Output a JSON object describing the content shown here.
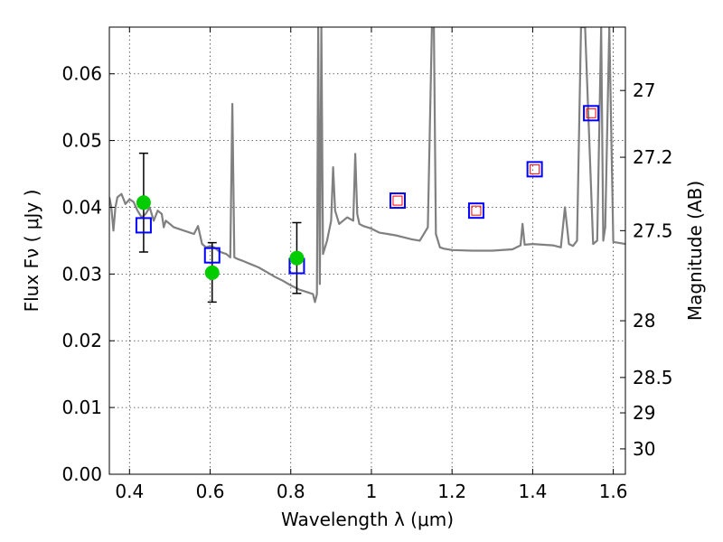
{
  "chart_data": {
    "type": "scatter",
    "xlabel": "Wavelength  λ (μm)",
    "ylabel": "Flux  Fν  ( μJy )",
    "ylabel_right": "Magnitude (AB)",
    "xlim": [
      0.35,
      1.63
    ],
    "ylim": [
      0.0,
      0.067
    ],
    "grid": true,
    "x_ticks": [
      0.4,
      0.6,
      0.8,
      1.0,
      1.2,
      1.4,
      1.6
    ],
    "x_tick_labels": [
      "0.4",
      "0.6",
      "0.8",
      "1",
      "1.2",
      "1.4",
      "1.6"
    ],
    "y_ticks": [
      0.0,
      0.01,
      0.02,
      0.03,
      0.04,
      0.05,
      0.06
    ],
    "y_tick_labels": [
      "0.00",
      "0.01",
      "0.02",
      "0.03",
      "0.04",
      "0.05",
      "0.06"
    ],
    "right_axis_ticks": [
      {
        "flux": 0.0575,
        "label": "27"
      },
      {
        "flux": 0.0475,
        "label": "27.2"
      },
      {
        "flux": 0.0365,
        "label": "27.5"
      },
      {
        "flux": 0.023,
        "label": "28"
      },
      {
        "flux": 0.0145,
        "label": "28.5"
      },
      {
        "flux": 0.0092,
        "label": "29"
      },
      {
        "flux": 0.0038,
        "label": "30"
      }
    ],
    "series": [
      {
        "kind": "line",
        "color": "#808080",
        "x": [
          0.35,
          0.355,
          0.36,
          0.365,
          0.37,
          0.38,
          0.39,
          0.4,
          0.41,
          0.42,
          0.43,
          0.44,
          0.45,
          0.46,
          0.47,
          0.48,
          0.485,
          0.49,
          0.5,
          0.51,
          0.52,
          0.53,
          0.54,
          0.55,
          0.56,
          0.57,
          0.58,
          0.59,
          0.6,
          0.61,
          0.62,
          0.63,
          0.64,
          0.65,
          0.655,
          0.66,
          0.67,
          0.68,
          0.7,
          0.72,
          0.74,
          0.76,
          0.78,
          0.8,
          0.82,
          0.84,
          0.855,
          0.86,
          0.865,
          0.868,
          0.872,
          0.876,
          0.88,
          0.89,
          0.9,
          0.905,
          0.91,
          0.92,
          0.93,
          0.94,
          0.955,
          0.96,
          0.965,
          0.97,
          0.98,
          1.0,
          1.02,
          1.04,
          1.06,
          1.08,
          1.1,
          1.12,
          1.14,
          1.15,
          1.155,
          1.16,
          1.17,
          1.18,
          1.2,
          1.25,
          1.3,
          1.35,
          1.37,
          1.375,
          1.38,
          1.4,
          1.45,
          1.47,
          1.48,
          1.49,
          1.5,
          1.51,
          1.52,
          1.53,
          1.55,
          1.56,
          1.57,
          1.575,
          1.58,
          1.59,
          1.6,
          1.61,
          1.63
        ],
        "y": [
          0.0415,
          0.04,
          0.0365,
          0.04,
          0.0415,
          0.042,
          0.0405,
          0.0412,
          0.0408,
          0.0395,
          0.0385,
          0.039,
          0.04,
          0.038,
          0.0395,
          0.039,
          0.037,
          0.038,
          0.0375,
          0.037,
          0.0368,
          0.0366,
          0.0364,
          0.0362,
          0.036,
          0.0372,
          0.0345,
          0.034,
          0.0342,
          0.034,
          0.0335,
          0.0332,
          0.033,
          0.0325,
          0.0555,
          0.0325,
          0.0322,
          0.032,
          0.0315,
          0.031,
          0.0303,
          0.0296,
          0.029,
          0.0283,
          0.0277,
          0.0273,
          0.027,
          0.0258,
          0.027,
          0.067,
          0.0285,
          0.067,
          0.033,
          0.035,
          0.038,
          0.046,
          0.0395,
          0.0375,
          0.038,
          0.0385,
          0.038,
          0.048,
          0.039,
          0.0375,
          0.0372,
          0.0368,
          0.0362,
          0.036,
          0.0358,
          0.0355,
          0.0352,
          0.035,
          0.037,
          0.067,
          0.067,
          0.036,
          0.034,
          0.0338,
          0.0336,
          0.0335,
          0.0335,
          0.0337,
          0.0343,
          0.0375,
          0.0344,
          0.0345,
          0.0343,
          0.034,
          0.04,
          0.0345,
          0.0342,
          0.035,
          0.067,
          0.067,
          0.0345,
          0.035,
          0.067,
          0.035,
          0.037,
          0.067,
          0.0348,
          0.0347,
          0.0345
        ]
      },
      {
        "kind": "points",
        "marker": "square",
        "color": "#0000ff",
        "x": [
          0.435,
          0.605,
          0.815,
          1.065,
          1.26,
          1.405,
          1.545
        ],
        "y": [
          0.0373,
          0.0328,
          0.0312,
          0.041,
          0.0395,
          0.0457,
          0.0541
        ]
      },
      {
        "kind": "points",
        "marker": "square-small",
        "color": "#ff0000",
        "x": [
          1.065,
          1.26,
          1.405,
          1.545
        ],
        "y": [
          0.041,
          0.0395,
          0.0457,
          0.0541
        ]
      },
      {
        "kind": "points",
        "marker": "circle",
        "color": "#00cc00",
        "x": [
          0.435,
          0.605,
          0.815
        ],
        "y": [
          0.0407,
          0.0302,
          0.0324
        ]
      }
    ],
    "error_bars": [
      {
        "x": 0.435,
        "low": 0.0333,
        "high": 0.0481
      },
      {
        "x": 0.605,
        "low": 0.0258,
        "high": 0.0347
      },
      {
        "x": 0.815,
        "low": 0.0271,
        "high": 0.0377
      }
    ]
  }
}
